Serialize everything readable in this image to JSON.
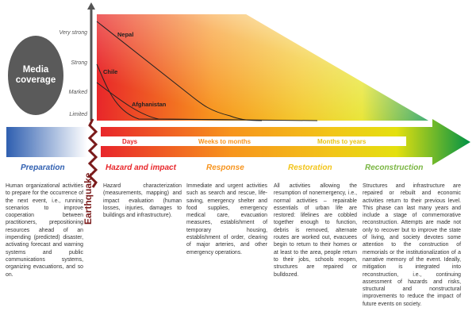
{
  "media": {
    "label_line1": "Media",
    "label_line2": "coverage"
  },
  "y_levels": [
    "Very strong",
    "Strong",
    "Marked",
    "Limited"
  ],
  "curves": [
    "Nepal",
    "Chile",
    "Afghanistan"
  ],
  "timeline": {
    "days": "Days",
    "weeks": "Weeks to months",
    "months": "Months to years"
  },
  "event": "Earthquake",
  "colors": {
    "preparation": "#2f5fb0",
    "hazard": "#e8262a",
    "response": "#f7941d",
    "restoration": "#f2c418",
    "reconstruction": "#7ab642",
    "earthquake": "#7a1a1a"
  },
  "phases": [
    {
      "title": "Preparation",
      "text": "Human organizational activities to prepare for the occurrence of the next event, i.e., running scenarios to improve cooperation between practitioners, prepositioning resources ahead of an impending (predicted) disaster, activating forecast and warning systems and public communications systems, organizing evacuations, and so on."
    },
    {
      "title": "Hazard and impact",
      "text": "Hazard characterization (measurements, mapping) and impact evaluation (human losses, injuries, damages to buildings and infrastructure)."
    },
    {
      "title": "Response",
      "text": "Immediate and urgent activities such as search and rescue, life-saving, emergency shelter and food supplies, emergency medical care, evacuation measures, establishment of temporary housing, establishment of order, clearing of major arteries, and other emergency operations."
    },
    {
      "title": "Restoration",
      "text": "All activities allowing the resumption of nonemergency, i.e., normal activities – repairable essentials of urban life are restored: lifelines are cobbled together enough to function, debris is removed, alternate routes are worked out, evacuees begin to return to their homes or at least to the area, people return to their jobs, schools reopen, structures are repaired or bulldozed."
    },
    {
      "title": "Reconstruction",
      "text": "Structures and infrastructure are repaired or rebuilt and economic activities return to their previous level. This phase can last many years and include a stage of commemorative reconstruction. Attempts are made not only to recover but to improve the state of living, and society devotes some attention to the construction of memorials or the institutionalization of a narrative memory of the event. Ideally, mitigation is integrated into reconstruction, i.e., continuing assessment of hazards and risks, structural and nonstructural improvements to reduce the impact of future events on society."
    }
  ]
}
